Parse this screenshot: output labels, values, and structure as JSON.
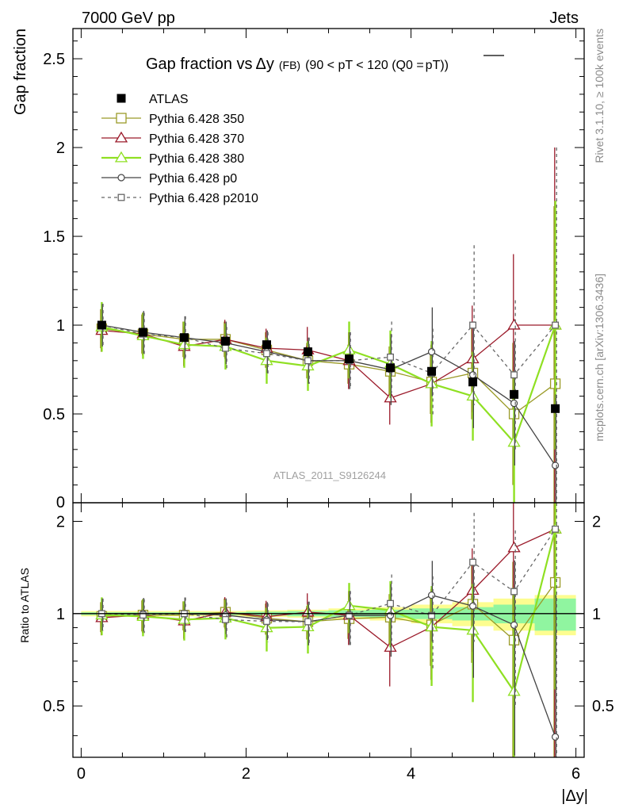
{
  "header": {
    "left": "7000 GeV pp",
    "right": "Jets"
  },
  "colors": {
    "atlas": "#000000",
    "p350": "#9b9b28",
    "p370": "#9b1a2a",
    "p380": "#8fe022",
    "p0": "#444444",
    "p2010": "#666666",
    "band_inner": "#90f5a0",
    "band_outer": "#fdfd90"
  },
  "side_labels": {
    "rivet": "Rivet 3.1.10, ≥ 100k events",
    "mcplots": "mcplots.cern.ch [arXiv:1306.3436]"
  },
  "chart_data": {
    "type": "scatter",
    "title_main": "Gap fraction vs",
    "title_symbol": "Δy",
    "title_fb": "(FB)",
    "title_range": "(90 < pT < 120 (Q0 =",
    "title_pt": "pT",
    "title_close": "))",
    "analysis_label": "ATLAS_2011_S9126244",
    "xlabel": "|Δy|",
    "ylabel_top": "Gap fraction",
    "ylabel_bottom": "Ratio to ATLAS",
    "xlim": [
      -0.1,
      6.1
    ],
    "ylim_top": [
      0,
      2.67
    ],
    "ylim_bottom": [
      0.34,
      2.3
    ],
    "x_ticks": [
      0,
      2,
      4,
      6
    ],
    "x_tick_labels": [
      "0",
      "2",
      "4",
      "6"
    ],
    "y_ticks_top": [
      0.5,
      1,
      1.5,
      2,
      2.5
    ],
    "y_tick_labels_top": [
      "0.5",
      "1",
      "1.5",
      "2",
      "2.5"
    ],
    "y_tick_zero_label": "0",
    "y_ticks_bottom": [
      0.5,
      1,
      2
    ],
    "y_tick_labels_bottom": [
      "0.5",
      "1",
      "2"
    ],
    "x": [
      0.25,
      0.75,
      1.25,
      1.75,
      2.25,
      2.75,
      3.25,
      3.75,
      4.25,
      4.75,
      5.25,
      5.75
    ],
    "data": {
      "name": "ATLAS",
      "values": [
        1.0,
        0.96,
        0.93,
        0.91,
        0.89,
        0.85,
        0.81,
        0.76,
        0.74,
        0.68,
        0.61,
        0.53
      ]
    },
    "series": [
      {
        "name": "Pythia 6.428 350",
        "marker": "square",
        "values": [
          0.98,
          0.95,
          0.92,
          0.92,
          0.86,
          0.8,
          0.78,
          0.74,
          0.68,
          0.73,
          0.5,
          0.67
        ],
        "errors": [
          0.11,
          0.11,
          0.1,
          0.1,
          0.1,
          0.1,
          0.11,
          0.14,
          0.18,
          0.26,
          0.4,
          1.0
        ]
      },
      {
        "name": "Pythia 6.428 370",
        "marker": "triangle",
        "values": [
          0.97,
          0.95,
          0.88,
          0.92,
          0.87,
          0.86,
          0.8,
          0.59,
          0.67,
          0.81,
          1.0,
          1.0
        ],
        "errors": [
          0.12,
          0.12,
          0.11,
          0.11,
          0.11,
          0.13,
          0.16,
          0.15,
          0.22,
          0.3,
          0.4,
          1.0
        ]
      },
      {
        "name": "Pythia 6.428 380",
        "marker": "triangle",
        "values": [
          0.99,
          0.94,
          0.89,
          0.88,
          0.8,
          0.77,
          0.86,
          0.78,
          0.67,
          0.6,
          0.34,
          1.0
        ],
        "errors": [
          0.14,
          0.13,
          0.13,
          0.13,
          0.13,
          0.14,
          0.16,
          0.19,
          0.24,
          0.25,
          0.4,
          0.7
        ]
      },
      {
        "name": "Pythia 6.428 p0",
        "marker": "circle",
        "values": [
          1.0,
          0.96,
          0.93,
          0.9,
          0.85,
          0.8,
          0.8,
          0.75,
          0.85,
          0.72,
          0.56,
          0.21
        ],
        "errors": [
          0.12,
          0.12,
          0.12,
          0.12,
          0.12,
          0.13,
          0.16,
          0.2,
          0.25,
          0.3,
          0.35,
          0.4
        ]
      },
      {
        "name": "Pythia 6.428 p2010",
        "marker": "square-small",
        "dashed": true,
        "values": [
          1.0,
          0.95,
          0.93,
          0.87,
          0.84,
          0.8,
          0.8,
          0.82,
          0.73,
          1.0,
          0.72,
          1.0
        ],
        "errors": [
          0.12,
          0.12,
          0.12,
          0.12,
          0.12,
          0.13,
          0.16,
          0.2,
          0.25,
          0.45,
          0.42,
          1.0
        ]
      }
    ],
    "band_inner_halfwidth": [
      0.01,
      0.01,
      0.01,
      0.01,
      0.015,
      0.02,
      0.025,
      0.03,
      0.04,
      0.05,
      0.07,
      0.12
    ],
    "band_outer_halfwidth": [
      0.02,
      0.02,
      0.02,
      0.02,
      0.025,
      0.03,
      0.04,
      0.05,
      0.07,
      0.09,
      0.12,
      0.15
    ]
  }
}
